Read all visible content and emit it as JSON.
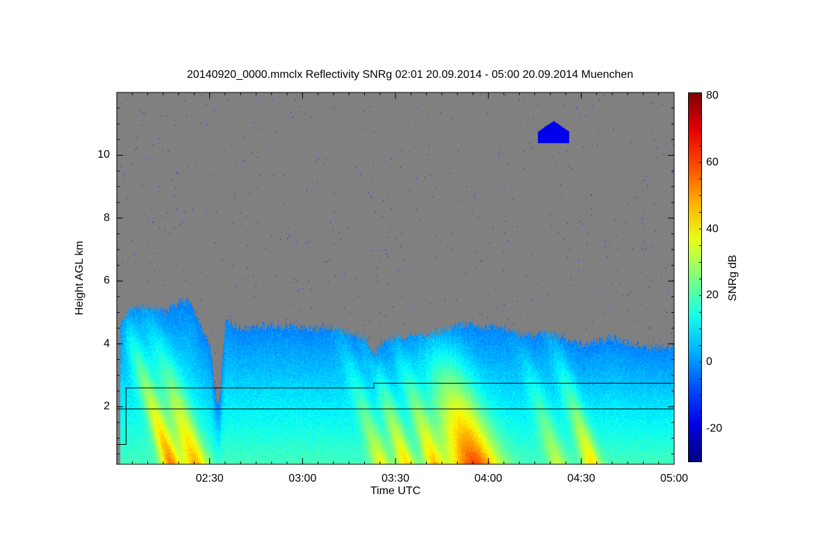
{
  "chart_data": {
    "type": "heatmap",
    "title": "20140920_0000.mmclx Reflectivity SNRg   02:01 20.09.2014 - 05:00 20.09.2014 Muenchen",
    "xlabel": "Time UTC",
    "ylabel": "Height AGL km",
    "colorbar_label": "SNRg dB",
    "xlim_minutes_utc": [
      120,
      300
    ],
    "data_start_minute": 121,
    "ylim": [
      0.17,
      12
    ],
    "clim": [
      -30,
      81
    ],
    "colormap": "jet",
    "no_data_color": "#808080",
    "x_ticks": [
      {
        "minute": 150,
        "label": "02:30"
      },
      {
        "minute": 180,
        "label": "03:00"
      },
      {
        "minute": 210,
        "label": "03:30"
      },
      {
        "minute": 240,
        "label": "04:00"
      },
      {
        "minute": 270,
        "label": "04:30"
      },
      {
        "minute": 300,
        "label": "05:00"
      }
    ],
    "y_ticks": [
      {
        "v": 2,
        "label": "2"
      },
      {
        "v": 4,
        "label": "4"
      },
      {
        "v": 6,
        "label": "6"
      },
      {
        "v": 8,
        "label": "8"
      },
      {
        "v": 10,
        "label": "10"
      }
    ],
    "c_ticks": [
      {
        "v": 80,
        "label": "80"
      },
      {
        "v": 60,
        "label": "60"
      },
      {
        "v": 40,
        "label": "40"
      },
      {
        "v": 20,
        "label": "20"
      },
      {
        "v": 0,
        "label": "0"
      },
      {
        "v": -20,
        "label": "-20"
      }
    ],
    "cloud_top_km": {
      "minutes": [
        121,
        125,
        130,
        135,
        140,
        143,
        146,
        148,
        150,
        152,
        153,
        155,
        160,
        170,
        180,
        190,
        200,
        203,
        205,
        210,
        220,
        230,
        235,
        245,
        250,
        260,
        270,
        280,
        290,
        300
      ],
      "heights": [
        4.7,
        5.2,
        5.2,
        5.0,
        5.3,
        5.4,
        4.8,
        4.3,
        4.0,
        2.2,
        2.0,
        4.8,
        4.5,
        4.6,
        4.5,
        4.5,
        4.2,
        3.6,
        4.0,
        4.2,
        4.3,
        4.6,
        4.6,
        4.5,
        4.3,
        4.3,
        4.0,
        4.2,
        3.9,
        3.9
      ]
    },
    "aloft_cloud": {
      "minutes": [
        256,
        266
      ],
      "base_km": 10.4,
      "top_km": 11.1
    },
    "fall_streaks": [
      {
        "ground_minute": 138,
        "peak_db": 55,
        "width_min": 3
      },
      {
        "ground_minute": 146,
        "peak_db": 50,
        "width_min": 4
      },
      {
        "ground_minute": 206,
        "peak_db": 40,
        "width_min": 3
      },
      {
        "ground_minute": 214,
        "peak_db": 45,
        "width_min": 3
      },
      {
        "ground_minute": 223,
        "peak_db": 45,
        "width_min": 3
      },
      {
        "ground_minute": 236,
        "peak_db": 62,
        "width_min": 8
      },
      {
        "ground_minute": 263,
        "peak_db": 35,
        "width_min": 3
      },
      {
        "ground_minute": 274,
        "peak_db": 45,
        "width_min": 3
      }
    ],
    "lines": {
      "horizontal_km": 1.93,
      "step_line": {
        "minutes": [
          120,
          123,
          123,
          154,
          154,
          203,
          203,
          300
        ],
        "heights": [
          0.8,
          0.8,
          2.6,
          2.6,
          2.6,
          2.6,
          2.75,
          2.75
        ]
      }
    }
  }
}
